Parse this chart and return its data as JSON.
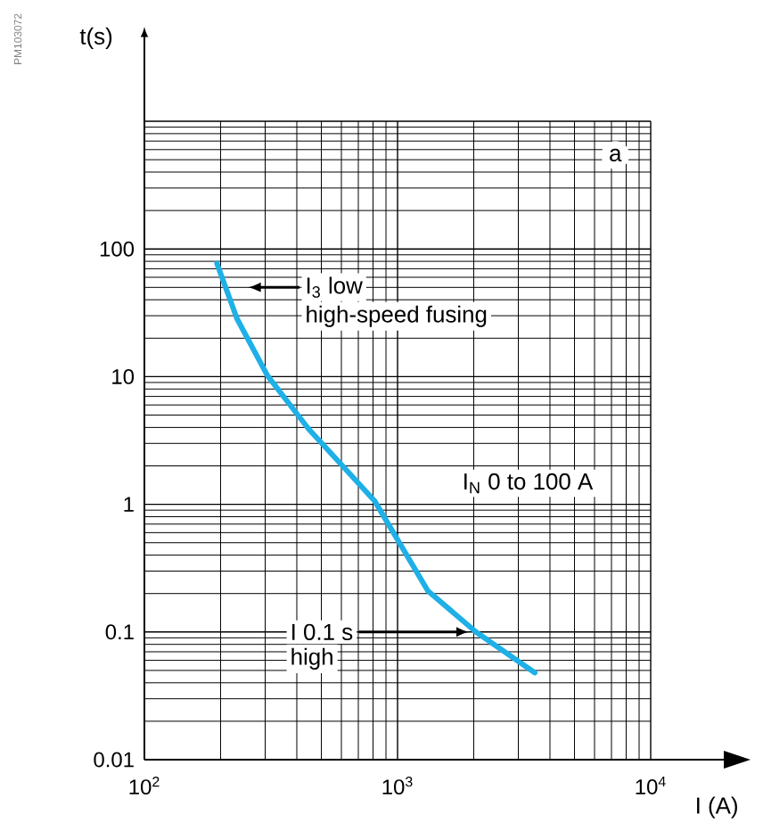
{
  "chart_data": {
    "type": "line",
    "xlabel": "I (A)",
    "ylabel": "t(s)",
    "log": "xy",
    "grid": true,
    "xlim": [
      100,
      10000
    ],
    "ylim": [
      0.01,
      1000
    ],
    "xticks": [
      {
        "value": 100,
        "label": "10$^{2}$"
      },
      {
        "value": 1000,
        "label": "10$^{3}$"
      },
      {
        "value": 10000,
        "label": "10$^{4}$"
      }
    ],
    "yticks": [
      0.01,
      0.1,
      1,
      10,
      100,
      {
        "value": 1000,
        "label": null
      }
    ],
    "series": [
      {
        "color": "#1eb0e6",
        "x": [
          193.5,
          232,
          306,
          445,
          810,
          1318,
          2040,
          3485
        ],
        "values": [
          77,
          28.5,
          10.2,
          3.9,
          1.07,
          0.21,
          0.1,
          0.048
        ]
      }
    ],
    "annotations": [
      "I$_{3}$ low",
      "high-speed fusing",
      "I$_{N}$ 0 to 100 A",
      "I 0.1 s",
      "high",
      "a",
      "PM103072"
    ]
  }
}
